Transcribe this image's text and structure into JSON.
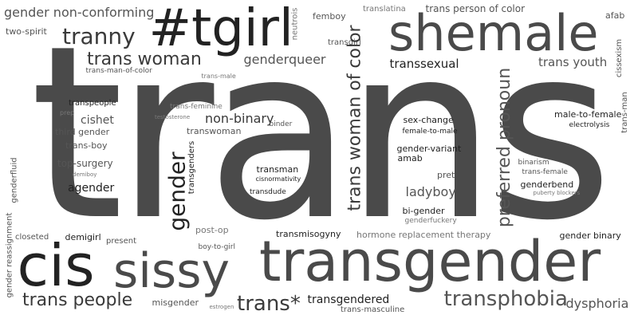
{
  "cloud": {
    "words": [
      {
        "text": "trans",
        "shade": "#4a4a4a",
        "orientation": "horizontal"
      },
      {
        "text": "transgender",
        "shade": "#4a4a4a",
        "orientation": "horizontal"
      },
      {
        "text": "shemale",
        "shade": "#4a4a4a",
        "orientation": "horizontal"
      },
      {
        "text": "#tgirl",
        "shade": "#222222",
        "orientation": "horizontal"
      },
      {
        "text": "cis",
        "shade": "#222222",
        "orientation": "horizontal"
      },
      {
        "text": "sissy",
        "shade": "#4a4a4a",
        "orientation": "horizontal"
      },
      {
        "text": "tranny",
        "shade": "#3a3a3a",
        "orientation": "horizontal"
      },
      {
        "text": "trans woman",
        "shade": "#3a3a3a",
        "orientation": "horizontal"
      },
      {
        "text": "gender non-conforming",
        "shade": "#555555",
        "orientation": "horizontal"
      },
      {
        "text": "two-spirit",
        "shade": "#555555",
        "orientation": "horizontal"
      },
      {
        "text": "neutrois",
        "shade": "#777777",
        "orientation": "vertical"
      },
      {
        "text": "femboy",
        "shade": "#555555",
        "orientation": "horizontal"
      },
      {
        "text": "translatina",
        "shade": "#777777",
        "orientation": "horizontal"
      },
      {
        "text": "trans person of color",
        "shade": "#555555",
        "orientation": "horizontal"
      },
      {
        "text": "afab",
        "shade": "#555555",
        "orientation": "horizontal"
      },
      {
        "text": "transgirl",
        "shade": "#555555",
        "orientation": "horizontal"
      },
      {
        "text": "genderqueer",
        "shade": "#555555",
        "orientation": "horizontal"
      },
      {
        "text": "non-binary",
        "shade": "#3a3a3a",
        "orientation": "horizontal"
      },
      {
        "text": "trans-man-of-color",
        "shade": "#555555",
        "orientation": "horizontal"
      },
      {
        "text": "trans-male",
        "shade": "#777777",
        "orientation": "horizontal"
      },
      {
        "text": "trans woman of color",
        "shade": "#3a3a3a",
        "orientation": "vertical"
      },
      {
        "text": "transsexual",
        "shade": "#222222",
        "orientation": "horizontal"
      },
      {
        "text": "preferred pronoun",
        "shade": "#555555",
        "orientation": "vertical"
      },
      {
        "text": "trans youth",
        "shade": "#555555",
        "orientation": "horizontal"
      },
      {
        "text": "cissexism",
        "shade": "#555555",
        "orientation": "vertical"
      },
      {
        "text": "transpeople",
        "shade": "#222222",
        "orientation": "horizontal"
      },
      {
        "text": "prep",
        "shade": "#777777",
        "orientation": "horizontal"
      },
      {
        "text": "trans-feminine",
        "shade": "#777777",
        "orientation": "horizontal"
      },
      {
        "text": "testosterone",
        "shade": "#777777",
        "orientation": "horizontal"
      },
      {
        "text": "cishet",
        "shade": "#555555",
        "orientation": "horizontal"
      },
      {
        "text": "third gender",
        "shade": "#555555",
        "orientation": "horizontal"
      },
      {
        "text": "trans-boy",
        "shade": "#555555",
        "orientation": "horizontal"
      },
      {
        "text": "transwoman",
        "shade": "#555555",
        "orientation": "horizontal"
      },
      {
        "text": "binder",
        "shade": "#555555",
        "orientation": "horizontal"
      },
      {
        "text": "gender",
        "shade": "#222222",
        "orientation": "vertical"
      },
      {
        "text": "transgenders",
        "shade": "#222222",
        "orientation": "vertical"
      },
      {
        "text": "sex-change",
        "shade": "#222222",
        "orientation": "horizontal"
      },
      {
        "text": "female-to-male",
        "shade": "#222222",
        "orientation": "horizontal"
      },
      {
        "text": "male-to-female",
        "shade": "#222222",
        "orientation": "horizontal"
      },
      {
        "text": "electrolysis",
        "shade": "#222222",
        "orientation": "horizontal"
      },
      {
        "text": "trans-man",
        "shade": "#555555",
        "orientation": "vertical"
      },
      {
        "text": "top-surgery",
        "shade": "#555555",
        "orientation": "horizontal"
      },
      {
        "text": "demiboy",
        "shade": "#777777",
        "orientation": "horizontal"
      },
      {
        "text": "genderfluid",
        "shade": "#555555",
        "orientation": "vertical"
      },
      {
        "text": "agender",
        "shade": "#222222",
        "orientation": "horizontal"
      },
      {
        "text": "transman",
        "shade": "#222222",
        "orientation": "horizontal"
      },
      {
        "text": "cisnormativity",
        "shade": "#222222",
        "orientation": "horizontal"
      },
      {
        "text": "transdude",
        "shade": "#222222",
        "orientation": "horizontal"
      },
      {
        "text": "gender-variant",
        "shade": "#222222",
        "orientation": "horizontal"
      },
      {
        "text": "amab",
        "shade": "#222222",
        "orientation": "horizontal"
      },
      {
        "text": "pret",
        "shade": "#555555",
        "orientation": "horizontal"
      },
      {
        "text": "ladyboy",
        "shade": "#555555",
        "orientation": "horizontal"
      },
      {
        "text": "bi-gender",
        "shade": "#222222",
        "orientation": "horizontal"
      },
      {
        "text": "genderfuckery",
        "shade": "#777777",
        "orientation": "horizontal"
      },
      {
        "text": "binarism",
        "shade": "#555555",
        "orientation": "horizontal"
      },
      {
        "text": "trans-female",
        "shade": "#555555",
        "orientation": "horizontal"
      },
      {
        "text": "genderbend",
        "shade": "#222222",
        "orientation": "horizontal"
      },
      {
        "text": "puberty blockers",
        "shade": "#777777",
        "orientation": "horizontal"
      },
      {
        "text": "gender reassignment",
        "shade": "#555555",
        "orientation": "vertical"
      },
      {
        "text": "closeted",
        "shade": "#555555",
        "orientation": "horizontal"
      },
      {
        "text": "demigirl",
        "shade": "#222222",
        "orientation": "horizontal"
      },
      {
        "text": "present",
        "shade": "#555555",
        "orientation": "horizontal"
      },
      {
        "text": "post-op",
        "shade": "#777777",
        "orientation": "horizontal"
      },
      {
        "text": "boy-to-girl",
        "shade": "#555555",
        "orientation": "horizontal"
      },
      {
        "text": "transmisogyny",
        "shade": "#222222",
        "orientation": "horizontal"
      },
      {
        "text": "hormone replacement therapy",
        "shade": "#777777",
        "orientation": "horizontal"
      },
      {
        "text": "gender binary",
        "shade": "#222222",
        "orientation": "horizontal"
      },
      {
        "text": "trans people",
        "shade": "#3a3a3a",
        "orientation": "horizontal"
      },
      {
        "text": "misgender",
        "shade": "#555555",
        "orientation": "horizontal"
      },
      {
        "text": "estrogen",
        "shade": "#777777",
        "orientation": "horizontal"
      },
      {
        "text": "trans*",
        "shade": "#3a3a3a",
        "orientation": "horizontal"
      },
      {
        "text": "transgendered",
        "shade": "#222222",
        "orientation": "horizontal"
      },
      {
        "text": "trans-masculine",
        "shade": "#555555",
        "orientation": "horizontal"
      },
      {
        "text": "transphobia",
        "shade": "#555555",
        "orientation": "horizontal"
      },
      {
        "text": "dysphoria",
        "shade": "#555555",
        "orientation": "horizontal"
      }
    ]
  }
}
